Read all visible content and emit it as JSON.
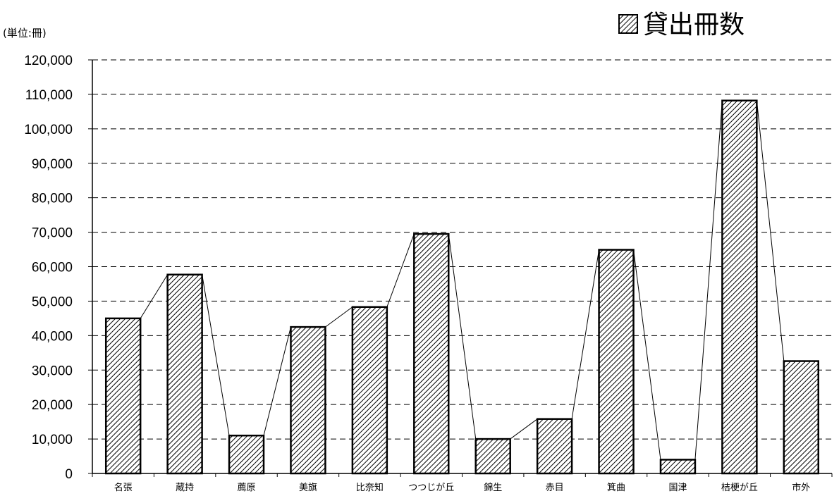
{
  "chart_data": {
    "type": "bar",
    "unit_label": "(単位:冊)",
    "categories": [
      "名張",
      "蔵持",
      "薦原",
      "美旗",
      "比奈知",
      "つつじが丘",
      "錦生",
      "赤目",
      "箕曲",
      "国津",
      "桔梗が丘",
      "市外"
    ],
    "series": [
      {
        "name": "貸出冊数",
        "values": [
          45000,
          57700,
          11000,
          42500,
          48300,
          69500,
          10000,
          15800,
          64900,
          4000,
          108200,
          32600
        ]
      }
    ],
    "yticks": [
      "0",
      "10,000",
      "20,000",
      "30,000",
      "40,000",
      "50,000",
      "60,000",
      "70,000",
      "80,000",
      "90,000",
      "100,000",
      "110,000",
      "120,000"
    ],
    "ylim": [
      0,
      120000
    ],
    "ytick_step": 10000,
    "grid": true,
    "connector_lines": true,
    "legend_position": "top-right",
    "bar_fill": "hatched",
    "colors": {
      "bar_stroke": "#000000",
      "hatch": "#000000",
      "background": "#ffffff",
      "grid": "#000000"
    }
  }
}
